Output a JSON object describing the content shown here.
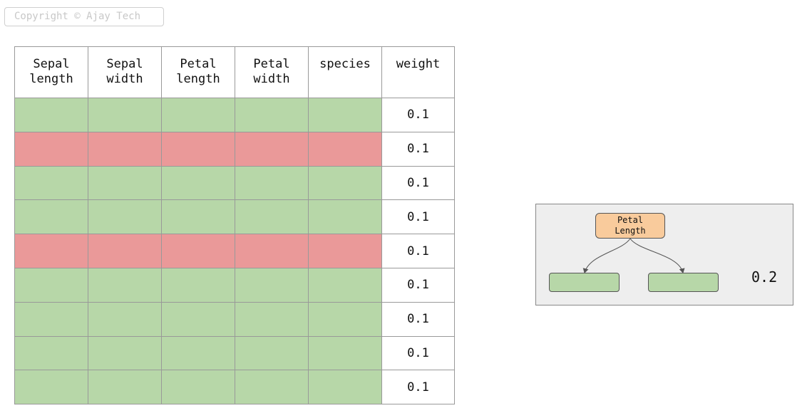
{
  "copyright": "Copyright © Ajay Tech",
  "table": {
    "headers": [
      [
        "Sepal",
        "length"
      ],
      [
        "Sepal",
        "width"
      ],
      [
        "Petal",
        "length"
      ],
      [
        "Petal",
        "width"
      ],
      [
        "species"
      ],
      [
        "weight"
      ]
    ],
    "rows": [
      {
        "status": "correct",
        "weight": "0.1"
      },
      {
        "status": "incorrect",
        "weight": "0.1"
      },
      {
        "status": "correct",
        "weight": "0.1"
      },
      {
        "status": "correct",
        "weight": "0.1"
      },
      {
        "status": "incorrect",
        "weight": "0.1"
      },
      {
        "status": "correct",
        "weight": "0.1"
      },
      {
        "status": "correct",
        "weight": "0.1"
      },
      {
        "status": "correct",
        "weight": "0.1"
      },
      {
        "status": "correct",
        "weight": "0.1"
      }
    ]
  },
  "colors": {
    "correct": "#b7d7a8",
    "incorrect": "#ea9999",
    "root_node": "#f9cb9c",
    "panel": "#eeeeee"
  },
  "stump": {
    "root_label": [
      "Petal",
      "Length"
    ],
    "weight": "0.2"
  }
}
